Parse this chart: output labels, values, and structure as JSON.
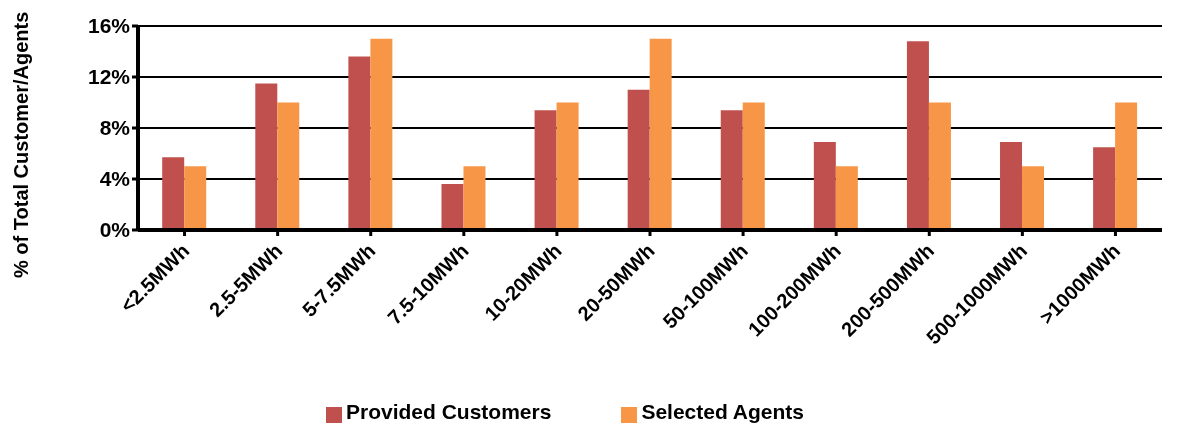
{
  "chart_data": {
    "type": "bar",
    "ylabel": "% of Total Customer/Agents",
    "categories": [
      "<2.5MWh",
      "2.5-5MWh",
      "5-7.5MWh",
      "7.5-10MWh",
      "10-20MWh",
      "20-50MWh",
      "50-100MWh",
      "100-200MWh",
      "200-500MWh",
      "500-1000MWh",
      ">1000MWh"
    ],
    "series": [
      {
        "name": "Provided Customers",
        "color": "#c0504d",
        "values": [
          5.7,
          11.5,
          13.6,
          3.6,
          9.4,
          11.0,
          9.4,
          6.9,
          14.8,
          6.9,
          6.5
        ]
      },
      {
        "name": "Selected Agents",
        "color": "#f79646",
        "values": [
          5,
          10,
          15,
          5,
          10,
          15,
          10,
          5,
          10,
          5,
          10
        ]
      }
    ],
    "ylim": [
      0,
      16
    ],
    "yticks": [
      {
        "value": 0,
        "label": "0%"
      },
      {
        "value": 4,
        "label": "4%"
      },
      {
        "value": 8,
        "label": "8%"
      },
      {
        "value": 12,
        "label": "12%"
      },
      {
        "value": 16,
        "label": "16%"
      }
    ],
    "grid": "y",
    "legend": "bottom"
  }
}
